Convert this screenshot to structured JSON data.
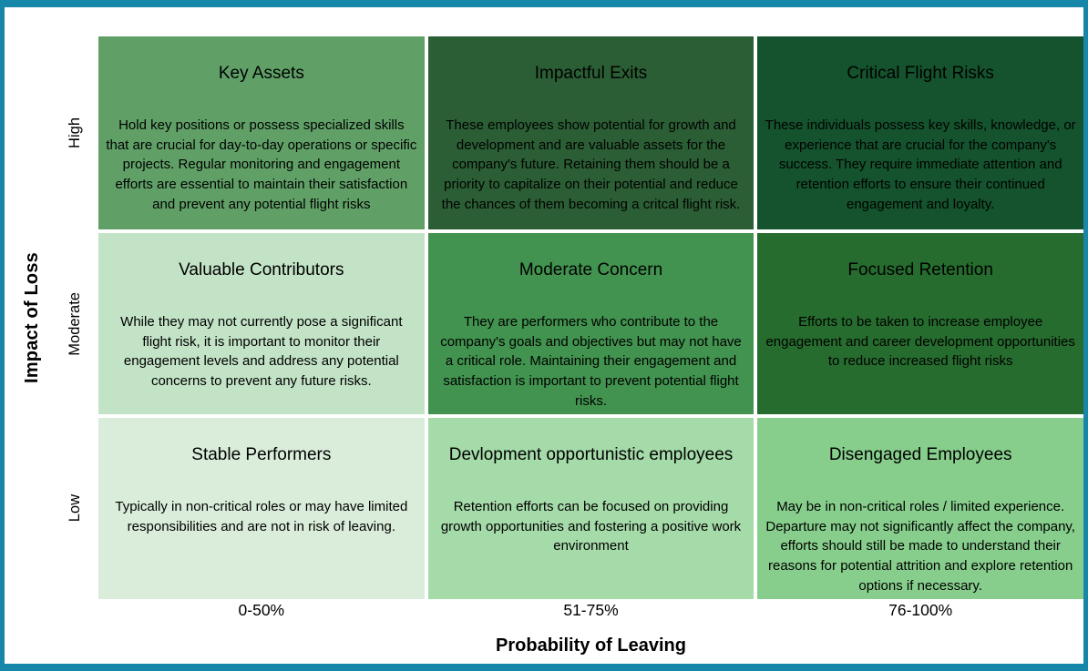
{
  "colors": {
    "frame_border": "#1686A9",
    "background": "#FFFFFF",
    "text": "#000000"
  },
  "y_axis": {
    "title": "Impact of Loss",
    "labels": [
      "High",
      "Moderate",
      "Low"
    ]
  },
  "x_axis": {
    "title": "Probability of Leaving",
    "labels": [
      "0-50%",
      "51-75%",
      "76-100%"
    ]
  },
  "matrix": {
    "rows": [
      {
        "impact": "High",
        "cells": [
          {
            "title": "Key Assets",
            "description": "Hold key positions or possess specialized skills that are crucial for day-to-day operations or specific projects. Regular monitoring and engagement efforts are essential to maintain their satisfaction and prevent any potential flight risks",
            "color": "#60A067"
          },
          {
            "title": "Impactful Exits",
            "description": "These employees show potential for growth and development and are valuable assets for the company's future. Retaining them should be a priority to capitalize on their potential and reduce the chances of them becoming a critcal flight risk.",
            "color": "#2B5E34"
          },
          {
            "title": "Critical Flight Risks",
            "description": "These individuals possess key skills, knowledge, or experience that are crucial for the company's success. They require immediate attention and retention efforts to ensure their continued engagement and loyalty.",
            "color": "#14532D"
          }
        ]
      },
      {
        "impact": "Moderate",
        "cells": [
          {
            "title": "Valuable Contributors",
            "description": "While they may not currently pose a significant flight risk, it is important to monitor their engagement levels and address any potential concerns to prevent any future risks.",
            "color": "#C3E3C6"
          },
          {
            "title": "Moderate Concern",
            "description": "They are performers who contribute to the company's goals and objectives but may not have a critical role. Maintaining their engagement and satisfaction is important to prevent potential flight risks.",
            "color": "#42934F"
          },
          {
            "title": "Focused Retention",
            "description": "Efforts to be taken to increase employee engagement and career development opportunities to reduce increased flight risks",
            "color": "#266C2E"
          }
        ]
      },
      {
        "impact": "Low",
        "cells": [
          {
            "title": "Stable Performers",
            "description": "Typically in non-critical roles or may have limited responsibilities and are not in risk of leaving.",
            "color": "#D9EDDA"
          },
          {
            "title": "Devlopment opportunistic employees",
            "description": "Retention efforts can be focused on providing growth opportunities and fostering a positive work environment",
            "color": "#A5DAA9"
          },
          {
            "title": "Disengaged Employees",
            "description": "May be in non-critical roles / limited experience. Departure may not significantly affect the company, efforts should still be made to understand their reasons for potential attrition and explore retention options if necessary.",
            "color": "#87CE8C"
          }
        ]
      }
    ]
  }
}
